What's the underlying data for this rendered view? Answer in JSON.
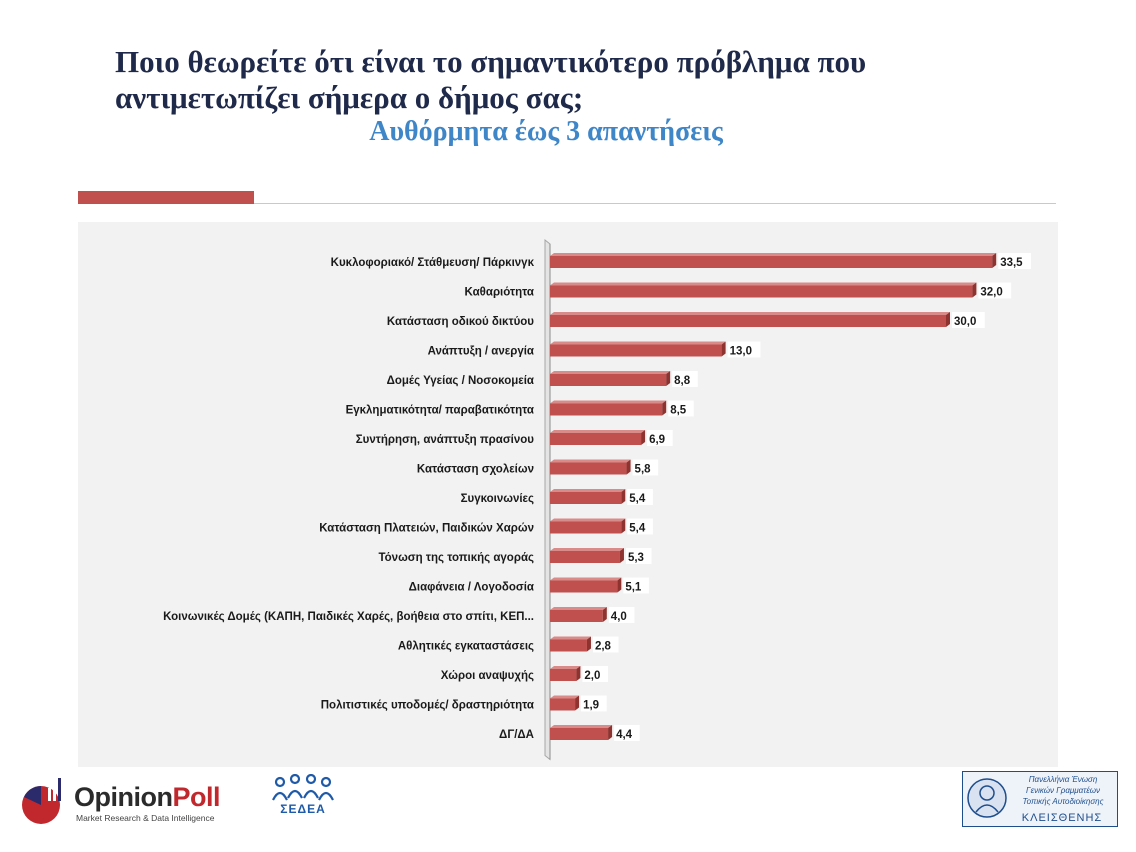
{
  "title": "Ποιο θεωρείτε ότι είναι το σημαντικότερο πρόβλημα που αντιμετωπίζει σήμερα ο δήμος σας;",
  "subtitle": "Αυθόρμητα έως 3 απαντήσεις",
  "colors": {
    "accent": "#c0504d",
    "bar": "#c0504d",
    "title": "#1f2a4a",
    "subtitle": "#3f86c8",
    "panel": "#f2f2f2"
  },
  "logos": {
    "opinion_poll": {
      "name_a": "Opinion",
      "name_b": "Poll",
      "tagline": "Market Research & Data Intelligence"
    },
    "sedea": {
      "name": "ΣΕΔΕΑ"
    },
    "kleisthenis": {
      "line1": "Πανελλήνια Ένωση",
      "line2": "Γενικών Γραμματέων",
      "line3": "Τοπικής Αυτοδιοίκησης",
      "name": "ΚΛΕΙΣΘΕΝΗΣ"
    }
  },
  "chart_data": {
    "type": "bar",
    "orientation": "horizontal",
    "categories": [
      "Κυκλοφοριακό/ Στάθμευση/ Πάρκινγκ",
      "Καθαριότητα",
      "Κατάσταση οδικού δικτύου",
      "Ανάπτυξη / ανεργία",
      "Δομές Υγείας / Νοσοκομεία",
      "Εγκληματικότητα/ παραβατικότητα",
      "Συντήρηση, ανάπτυξη πρασίνου",
      "Κατάσταση σχολείων",
      "Συγκοινωνίες",
      "Κατάσταση Πλατειών, Παιδικών Χαρών",
      "Τόνωση της τοπικής αγοράς",
      "Διαφάνεια / Λογοδοσία",
      "Κοινωνικές Δομές (ΚΑΠΗ, Παιδικές Χαρές, βοήθεια στο σπίτι, ΚΕΠ...",
      "Αθλητικές εγκαταστάσεις",
      "Χώροι αναψυχής",
      "Πολιτιστικές υποδομές/ δραστηριότητα",
      "ΔΓ/ΔΑ"
    ],
    "values": [
      33.5,
      32.0,
      30.0,
      13.0,
      8.8,
      8.5,
      6.9,
      5.8,
      5.4,
      5.4,
      5.3,
      5.1,
      4.0,
      2.8,
      2.0,
      1.9,
      4.4
    ],
    "value_labels": [
      "33,5",
      "32,0",
      "30,0",
      "13,0",
      "8,8",
      "8,5",
      "6,9",
      "5,8",
      "5,4",
      "5,4",
      "5,3",
      "5,1",
      "4,0",
      "2,8",
      "2,0",
      "1,9",
      "4,4"
    ],
    "xlim": [
      0,
      35
    ],
    "grid": false,
    "legend": "none"
  }
}
